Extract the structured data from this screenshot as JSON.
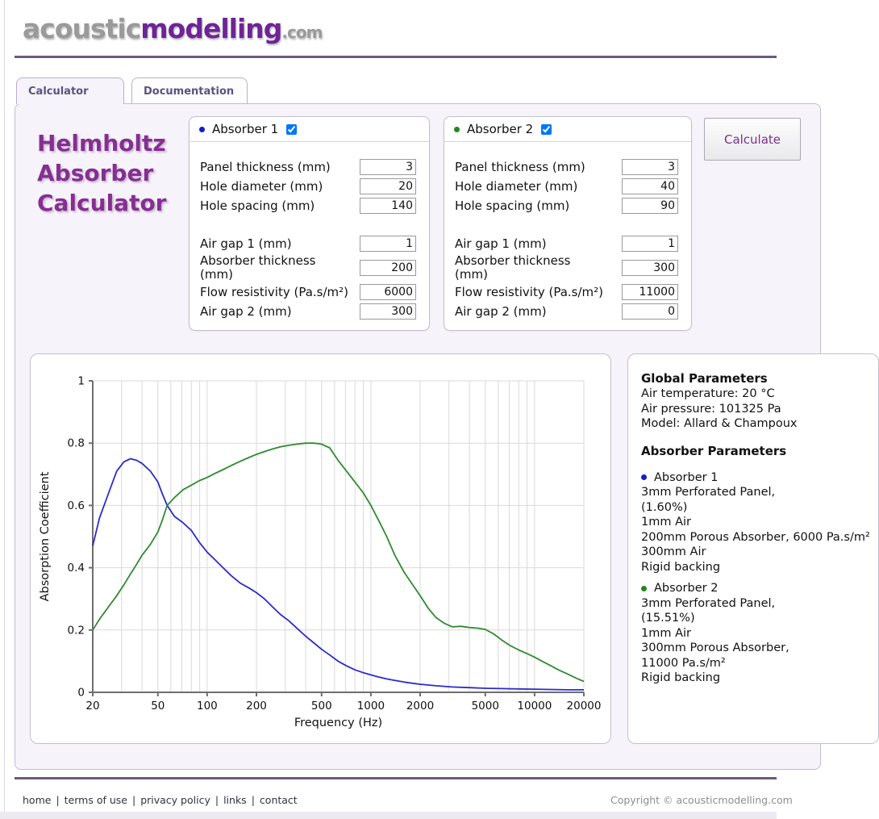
{
  "brand": {
    "logo_part1": "acoustic",
    "logo_part2": "modelling",
    "logo_part3": ".com"
  },
  "tabs": {
    "calculator": "Calculator",
    "documentation": "Documentation"
  },
  "page_title_lines": [
    "Helmholtz",
    "Absorber",
    "Calculator"
  ],
  "toolbar": {
    "calculate_label": "Calculate"
  },
  "absorbers": [
    {
      "name": "Absorber 1",
      "bullet_color": "#1a1acc",
      "checked": "checked",
      "fields": [
        {
          "label": "Panel thickness (mm)",
          "value": "3"
        },
        {
          "label": "Hole diameter (mm)",
          "value": "20"
        },
        {
          "label": "Hole spacing (mm)",
          "value": "140"
        },
        {
          "label": "Air gap 1 (mm)",
          "value": "1"
        },
        {
          "label": "Absorber thickness\n(mm)",
          "value": "200"
        },
        {
          "label": "Flow resistivity (Pa.s/m²)",
          "value": "6000"
        },
        {
          "label": "Air gap 2 (mm)",
          "value": "300"
        }
      ]
    },
    {
      "name": "Absorber 2",
      "bullet_color": "#1d8a1d",
      "checked": "checked",
      "fields": [
        {
          "label": "Panel thickness (mm)",
          "value": "3"
        },
        {
          "label": "Hole diameter (mm)",
          "value": "40"
        },
        {
          "label": "Hole spacing (mm)",
          "value": "90"
        },
        {
          "label": "Air gap 1 (mm)",
          "value": "1"
        },
        {
          "label": "Absorber thickness\n(mm)",
          "value": "300"
        },
        {
          "label": "Flow resistivity (Pa.s/m²)",
          "value": "11000"
        },
        {
          "label": "Air gap 2 (mm)",
          "value": "0"
        }
      ]
    }
  ],
  "info_panel": {
    "global_heading": "Global Parameters",
    "global_lines": [
      "Air temperature: 20 °C",
      "Air pressure: 101325 Pa",
      "Model: Allard & Champoux"
    ],
    "absorbers_heading": "Absorber Parameters",
    "entries": [
      {
        "title": "Absorber 1",
        "bullet_color": "#1a1acc",
        "lines": [
          "3mm Perforated Panel,",
          "(1.60%)",
          "1mm Air",
          "200mm Porous Absorber, 6000 Pa.s/m²",
          "300mm Air",
          "Rigid backing"
        ]
      },
      {
        "title": "Absorber 2",
        "bullet_color": "#1d8a1d",
        "lines": [
          "3mm Perforated Panel,",
          "(15.51%)",
          "1mm Air",
          "300mm Porous Absorber,",
          "11000 Pa.s/m²",
          "Rigid backing"
        ]
      }
    ]
  },
  "chart_data": {
    "type": "line",
    "xlabel": "Frequency (Hz)",
    "ylabel": "Absorption Coefficient",
    "x_scale": "log",
    "x_range": [
      20,
      20000
    ],
    "y_range": [
      0,
      1
    ],
    "grid": true,
    "legend": "none",
    "grid_color": "#d9d9d9",
    "axis_color": "#6e6e6e",
    "x_ticks": [
      20,
      50,
      100,
      200,
      500,
      1000,
      2000,
      5000,
      10000,
      20000
    ],
    "y_ticks": [
      {
        "v": 0,
        "label": "0"
      },
      {
        "v": 0.2,
        "label": "0.2"
      },
      {
        "v": 0.4,
        "label": "0.4"
      },
      {
        "v": 0.6,
        "label": "0.6"
      },
      {
        "v": 0.8,
        "label": "0.8"
      },
      {
        "v": 1,
        "label": "1"
      }
    ],
    "x_grid": [
      30,
      40,
      50,
      60,
      70,
      80,
      90,
      100,
      200,
      300,
      400,
      500,
      600,
      700,
      800,
      900,
      1000,
      2000,
      3000,
      4000,
      5000,
      6000,
      7000,
      8000,
      9000,
      10000,
      20000
    ],
    "series": [
      {
        "name": "Absorber 1",
        "color": "#2b2bcc",
        "points": [
          [
            20,
            0.47
          ],
          [
            22,
            0.56
          ],
          [
            25,
            0.64
          ],
          [
            28,
            0.71
          ],
          [
            31,
            0.74
          ],
          [
            34,
            0.75
          ],
          [
            37,
            0.745
          ],
          [
            40,
            0.735
          ],
          [
            45,
            0.71
          ],
          [
            50,
            0.675
          ],
          [
            53,
            0.64
          ],
          [
            57,
            0.6
          ],
          [
            63,
            0.565
          ],
          [
            71,
            0.545
          ],
          [
            80,
            0.52
          ],
          [
            90,
            0.48
          ],
          [
            100,
            0.45
          ],
          [
            112,
            0.425
          ],
          [
            125,
            0.4
          ],
          [
            140,
            0.375
          ],
          [
            160,
            0.35
          ],
          [
            180,
            0.335
          ],
          [
            200,
            0.32
          ],
          [
            224,
            0.3
          ],
          [
            250,
            0.275
          ],
          [
            280,
            0.25
          ],
          [
            315,
            0.23
          ],
          [
            355,
            0.205
          ],
          [
            400,
            0.18
          ],
          [
            450,
            0.158
          ],
          [
            500,
            0.138
          ],
          [
            560,
            0.12
          ],
          [
            630,
            0.1
          ],
          [
            710,
            0.085
          ],
          [
            800,
            0.072
          ],
          [
            900,
            0.063
          ],
          [
            1000,
            0.056
          ],
          [
            1120,
            0.049
          ],
          [
            1250,
            0.043
          ],
          [
            1400,
            0.038
          ],
          [
            1600,
            0.033
          ],
          [
            1800,
            0.029
          ],
          [
            2000,
            0.026
          ],
          [
            2500,
            0.021
          ],
          [
            3150,
            0.017
          ],
          [
            4000,
            0.015
          ],
          [
            5000,
            0.013
          ],
          [
            6300,
            0.012
          ],
          [
            8000,
            0.011
          ],
          [
            10000,
            0.01
          ],
          [
            12500,
            0.009
          ],
          [
            16000,
            0.008
          ],
          [
            20000,
            0.008
          ]
        ]
      },
      {
        "name": "Absorber 2",
        "color": "#2e8b2e",
        "points": [
          [
            20,
            0.2
          ],
          [
            22,
            0.235
          ],
          [
            25,
            0.275
          ],
          [
            28,
            0.31
          ],
          [
            31,
            0.345
          ],
          [
            34,
            0.38
          ],
          [
            37,
            0.41
          ],
          [
            40,
            0.44
          ],
          [
            45,
            0.475
          ],
          [
            50,
            0.515
          ],
          [
            53,
            0.55
          ],
          [
            57,
            0.6
          ],
          [
            63,
            0.625
          ],
          [
            71,
            0.65
          ],
          [
            80,
            0.665
          ],
          [
            90,
            0.68
          ],
          [
            100,
            0.69
          ],
          [
            112,
            0.703
          ],
          [
            125,
            0.715
          ],
          [
            140,
            0.728
          ],
          [
            160,
            0.742
          ],
          [
            180,
            0.754
          ],
          [
            200,
            0.764
          ],
          [
            224,
            0.773
          ],
          [
            250,
            0.781
          ],
          [
            280,
            0.788
          ],
          [
            315,
            0.793
          ],
          [
            355,
            0.797
          ],
          [
            400,
            0.8
          ],
          [
            450,
            0.8
          ],
          [
            500,
            0.797
          ],
          [
            560,
            0.785
          ],
          [
            630,
            0.745
          ],
          [
            710,
            0.71
          ],
          [
            800,
            0.675
          ],
          [
            900,
            0.64
          ],
          [
            1000,
            0.6
          ],
          [
            1120,
            0.55
          ],
          [
            1250,
            0.5
          ],
          [
            1400,
            0.44
          ],
          [
            1600,
            0.385
          ],
          [
            1800,
            0.345
          ],
          [
            2000,
            0.31
          ],
          [
            2240,
            0.27
          ],
          [
            2500,
            0.24
          ],
          [
            2800,
            0.222
          ],
          [
            3150,
            0.21
          ],
          [
            3550,
            0.212
          ],
          [
            4000,
            0.208
          ],
          [
            4500,
            0.206
          ],
          [
            5000,
            0.202
          ],
          [
            5600,
            0.188
          ],
          [
            6300,
            0.168
          ],
          [
            7100,
            0.15
          ],
          [
            8000,
            0.136
          ],
          [
            9000,
            0.124
          ],
          [
            10000,
            0.113
          ],
          [
            11200,
            0.099
          ],
          [
            12500,
            0.086
          ],
          [
            14000,
            0.072
          ],
          [
            16000,
            0.058
          ],
          [
            18000,
            0.045
          ],
          [
            20000,
            0.035
          ]
        ]
      }
    ]
  },
  "footer": {
    "links": [
      "home",
      "terms of use",
      "privacy policy",
      "links",
      "contact"
    ],
    "separator": "|",
    "copyright": "Copyright © acousticmodelling.com"
  }
}
